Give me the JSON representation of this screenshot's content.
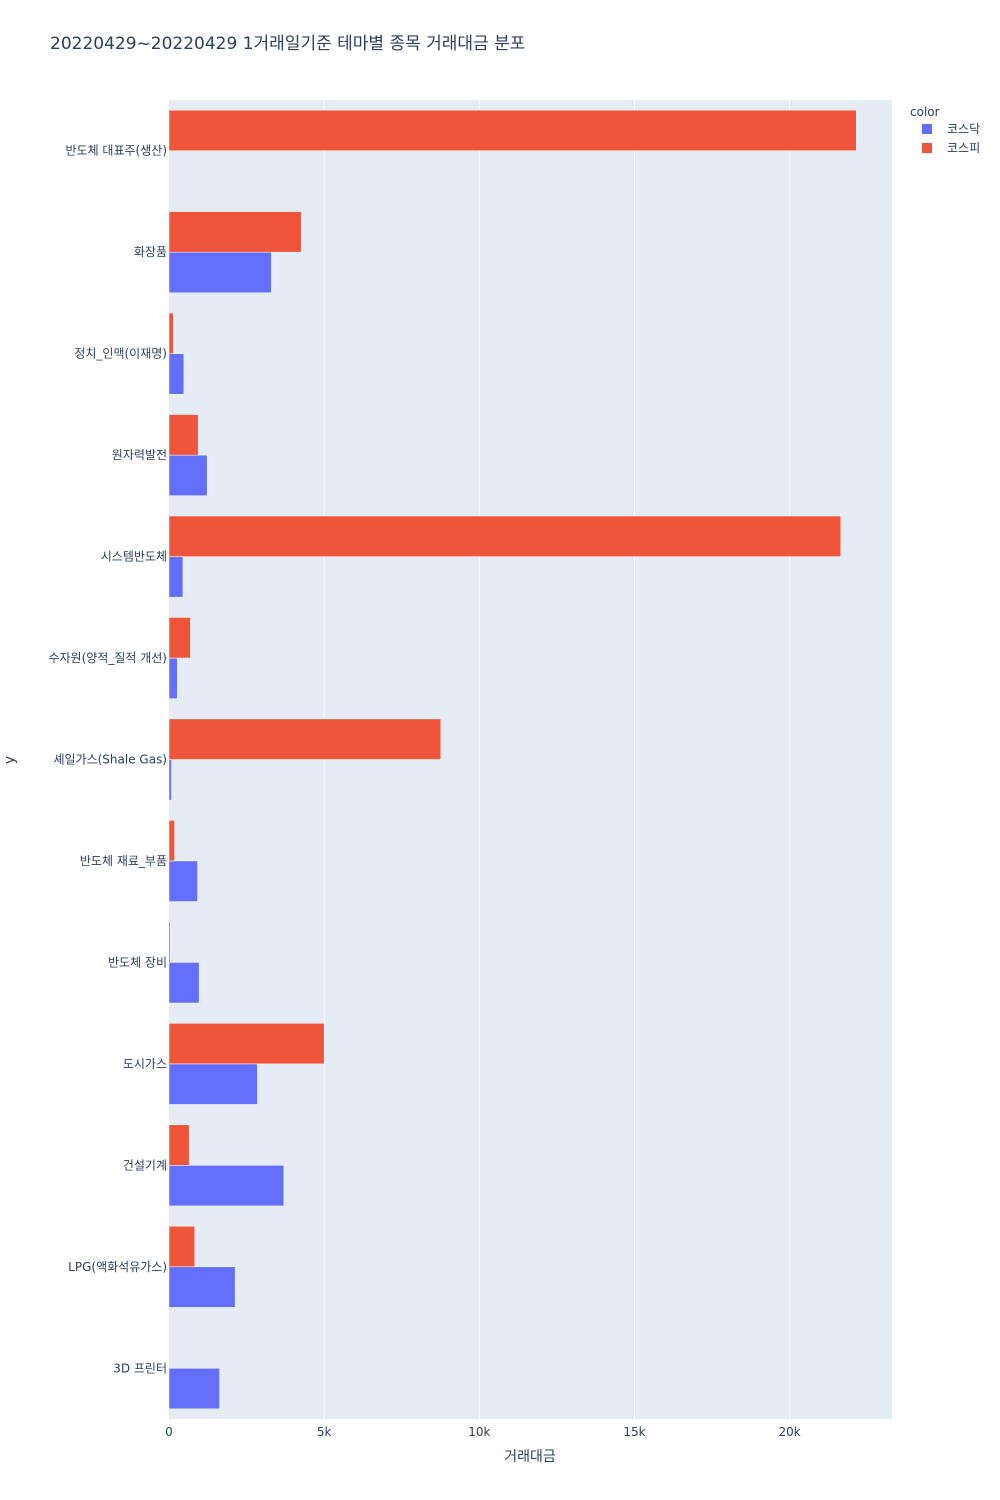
{
  "chart_data": {
    "type": "bar",
    "orientation": "horizontal",
    "title": "20220429~20220429 1거래일기준 테마별 종목 거래대금 분포",
    "xlabel": "거래대금",
    "ylabel": "y",
    "xlim": [
      0,
      23300
    ],
    "xticks": [
      {
        "value": 0,
        "label": "0"
      },
      {
        "value": 5000,
        "label": "5k"
      },
      {
        "value": 10000,
        "label": "10k"
      },
      {
        "value": 15000,
        "label": "15k"
      },
      {
        "value": 20000,
        "label": "20k"
      }
    ],
    "categories": [
      "반도체 대표주(생산)",
      "화장품",
      "정치_인맥(이재명)",
      "원자력발전",
      "시스템반도체",
      "수자원(양적_질적 개선)",
      "셰일가스(Shale Gas)",
      "반도체 재료_부품",
      "반도체 장비",
      "도시가스",
      "건설기계",
      "LPG(액화석유가스)",
      "3D 프린터"
    ],
    "legend_title": "color",
    "series": [
      {
        "name": "코스닥",
        "color": "#636efa",
        "values": [
          0,
          3300,
          480,
          1230,
          450,
          270,
          80,
          920,
          970,
          2850,
          3700,
          2130,
          1630
        ]
      },
      {
        "name": "코스피",
        "color": "#ef553b",
        "values": [
          22150,
          4260,
          140,
          940,
          21650,
          690,
          8760,
          180,
          40,
          5000,
          650,
          830,
          0
        ]
      }
    ]
  }
}
